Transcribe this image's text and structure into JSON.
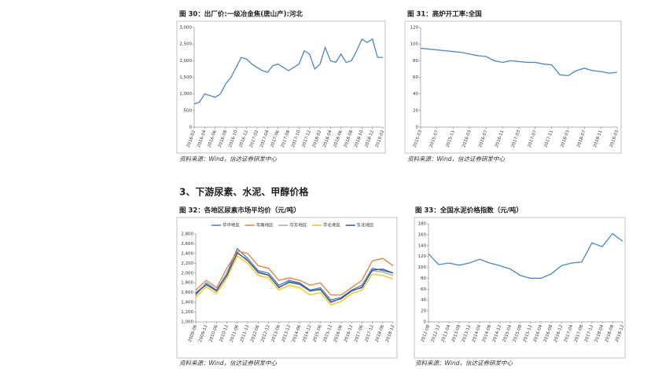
{
  "section_heading": "3、下游尿素、水泥、甲醇价格",
  "chart_data": [
    {
      "type": "line",
      "title": "图 30：出厂价:一级冶金焦(唐山产):河北",
      "source": "资料来源：Wind，信达证券研发中心",
      "color": "#4a86c5",
      "categories": [
        "2016-02",
        null,
        "2016-04",
        null,
        "2016-06",
        null,
        "2016-08",
        null,
        "2016-10",
        null,
        "2016-12",
        null,
        "2017-02",
        null,
        "2017-04",
        null,
        "2017-06",
        null,
        "2017-08",
        null,
        "2017-10",
        null,
        "2017-12",
        null,
        "2018-02",
        null,
        "2018-04",
        null,
        "2018-06",
        null,
        "2018-08",
        null,
        "2018-10",
        null,
        "2018-12",
        null,
        "2019-02"
      ],
      "values": [
        700,
        750,
        1000,
        950,
        900,
        1000,
        1300,
        1500,
        1800,
        2100,
        2050,
        1900,
        1800,
        1700,
        1650,
        1850,
        1900,
        1800,
        1700,
        1800,
        1900,
        2300,
        2200,
        1750,
        1900,
        2400,
        2000,
        1950,
        2200,
        1950,
        2000,
        2300,
        2650,
        2550,
        2650,
        2100,
        2100
      ],
      "ylim": [
        0,
        3000
      ],
      "yticks": [
        0,
        500,
        {
          "value": 1000,
          "label": "1,000"
        },
        {
          "value": 1500,
          "label": "1,500"
        },
        {
          "value": 2000,
          "label": "2,000"
        },
        {
          "value": 2500,
          "label": "2,500"
        },
        {
          "value": 3000,
          "label": "3,000"
        }
      ]
    },
    {
      "type": "line",
      "title": "图 31：高炉开工率:全国",
      "source": "资料来源：Wind，信达证券研发中心",
      "color": "#4a86c5",
      "categories": [
        "2015-03",
        null,
        "2015-07",
        null,
        "2015-11",
        null,
        "2016-03",
        null,
        "2016-07",
        null,
        "2016-11",
        null,
        "2017-03",
        null,
        "2017-07",
        null,
        "2017-11",
        null,
        "2018-03",
        null,
        "2018-07",
        null,
        "2018-11",
        null,
        "2019-03"
      ],
      "values": [
        95,
        94,
        93,
        92,
        91,
        90,
        88,
        86,
        85,
        80,
        78,
        80,
        79,
        78,
        78,
        76,
        75,
        63,
        62,
        68,
        71,
        68,
        67,
        65,
        66
      ],
      "ylim": [
        0,
        120
      ],
      "yticks": [
        0,
        20,
        40,
        60,
        80,
        100,
        120
      ]
    },
    {
      "type": "line",
      "title": "图 32：各地区尿素市场平均价（元/吨）",
      "source": "资料来源：Wind，信达证券研发中心",
      "categories": [
        "2009-06",
        "2009-12",
        "2010-06",
        "2010-12",
        "2011-06",
        "2011-12",
        "2012-06",
        "2012-12",
        "2013-06",
        "2013-12",
        "2014-06",
        "2014-12",
        "2015-06",
        "2015-12",
        "2016-06",
        "2016-12",
        "2017-06",
        "2017-12",
        "2018-06",
        "2018-12"
      ],
      "series": [
        {
          "name": "华中地区",
          "color": "#4a7fc1",
          "values": [
            1550,
            1800,
            1650,
            2000,
            2500,
            2300,
            2050,
            2000,
            1750,
            1850,
            1800,
            1650,
            1700,
            1450,
            1500,
            1650,
            1750,
            2100,
            2050,
            2000
          ]
        },
        {
          "name": "华南地区",
          "color": "#ed7d31",
          "values": [
            1650,
            1850,
            1700,
            2100,
            2450,
            2400,
            2150,
            2100,
            1850,
            1900,
            1850,
            1750,
            1800,
            1550,
            1550,
            1700,
            1850,
            2250,
            2300,
            2150
          ]
        },
        {
          "name": "华东地区",
          "color": "#a5a5a5",
          "values": [
            1600,
            1780,
            1620,
            1980,
            2400,
            2280,
            2000,
            1950,
            1720,
            1800,
            1760,
            1620,
            1680,
            1420,
            1470,
            1620,
            1720,
            2050,
            2020,
            1950
          ]
        },
        {
          "name": "华北地区",
          "color": "#ffc000",
          "values": [
            1500,
            1720,
            1580,
            1900,
            2350,
            2200,
            1950,
            1900,
            1650,
            1750,
            1700,
            1550,
            1600,
            1350,
            1420,
            1580,
            1650,
            1980,
            1950,
            1880
          ]
        },
        {
          "name": "东北地区",
          "color": "#2f5597",
          "values": [
            1580,
            1760,
            1640,
            1950,
            2420,
            2250,
            2020,
            1960,
            1700,
            1820,
            1780,
            1640,
            1660,
            1400,
            1480,
            1640,
            1700,
            2060,
            2080,
            2000
          ]
        }
      ],
      "ylim": [
        1000,
        2800
      ],
      "yticks": [
        {
          "value": 1000,
          "label": "1,000"
        },
        {
          "value": 1200,
          "label": "1,200"
        },
        {
          "value": 1400,
          "label": "1,400"
        },
        {
          "value": 1600,
          "label": "1,600"
        },
        {
          "value": 1800,
          "label": "1,800"
        },
        {
          "value": 2000,
          "label": "2,000"
        },
        {
          "value": 2200,
          "label": "2,200"
        },
        {
          "value": 2400,
          "label": "2,400"
        },
        {
          "value": 2600,
          "label": "2,600"
        },
        {
          "value": 2800,
          "label": "2,800"
        }
      ]
    },
    {
      "type": "line",
      "title": "图 33：全国水泥价格指数（元/吨）",
      "source": "资料来源：Wind，信达证券研发中心",
      "color": "#4a86c5",
      "categories": [
        "2012-08",
        "2012-12",
        "2013-04",
        "2013-08",
        "2013-12",
        "2014-04",
        "2014-08",
        "2014-12",
        "2015-04",
        "2015-08",
        "2015-12",
        "2016-04",
        "2016-08",
        "2016-12",
        "2017-04",
        "2017-08",
        "2017-12",
        "2018-04",
        "2018-08",
        "2018-12"
      ],
      "values": [
        125,
        105,
        108,
        104,
        108,
        115,
        108,
        103,
        97,
        85,
        80,
        80,
        88,
        103,
        108,
        110,
        145,
        138,
        162,
        148
      ],
      "ylim": [
        0,
        180
      ],
      "yticks": [
        0,
        20,
        40,
        60,
        80,
        100,
        120,
        140,
        160,
        180
      ]
    }
  ]
}
